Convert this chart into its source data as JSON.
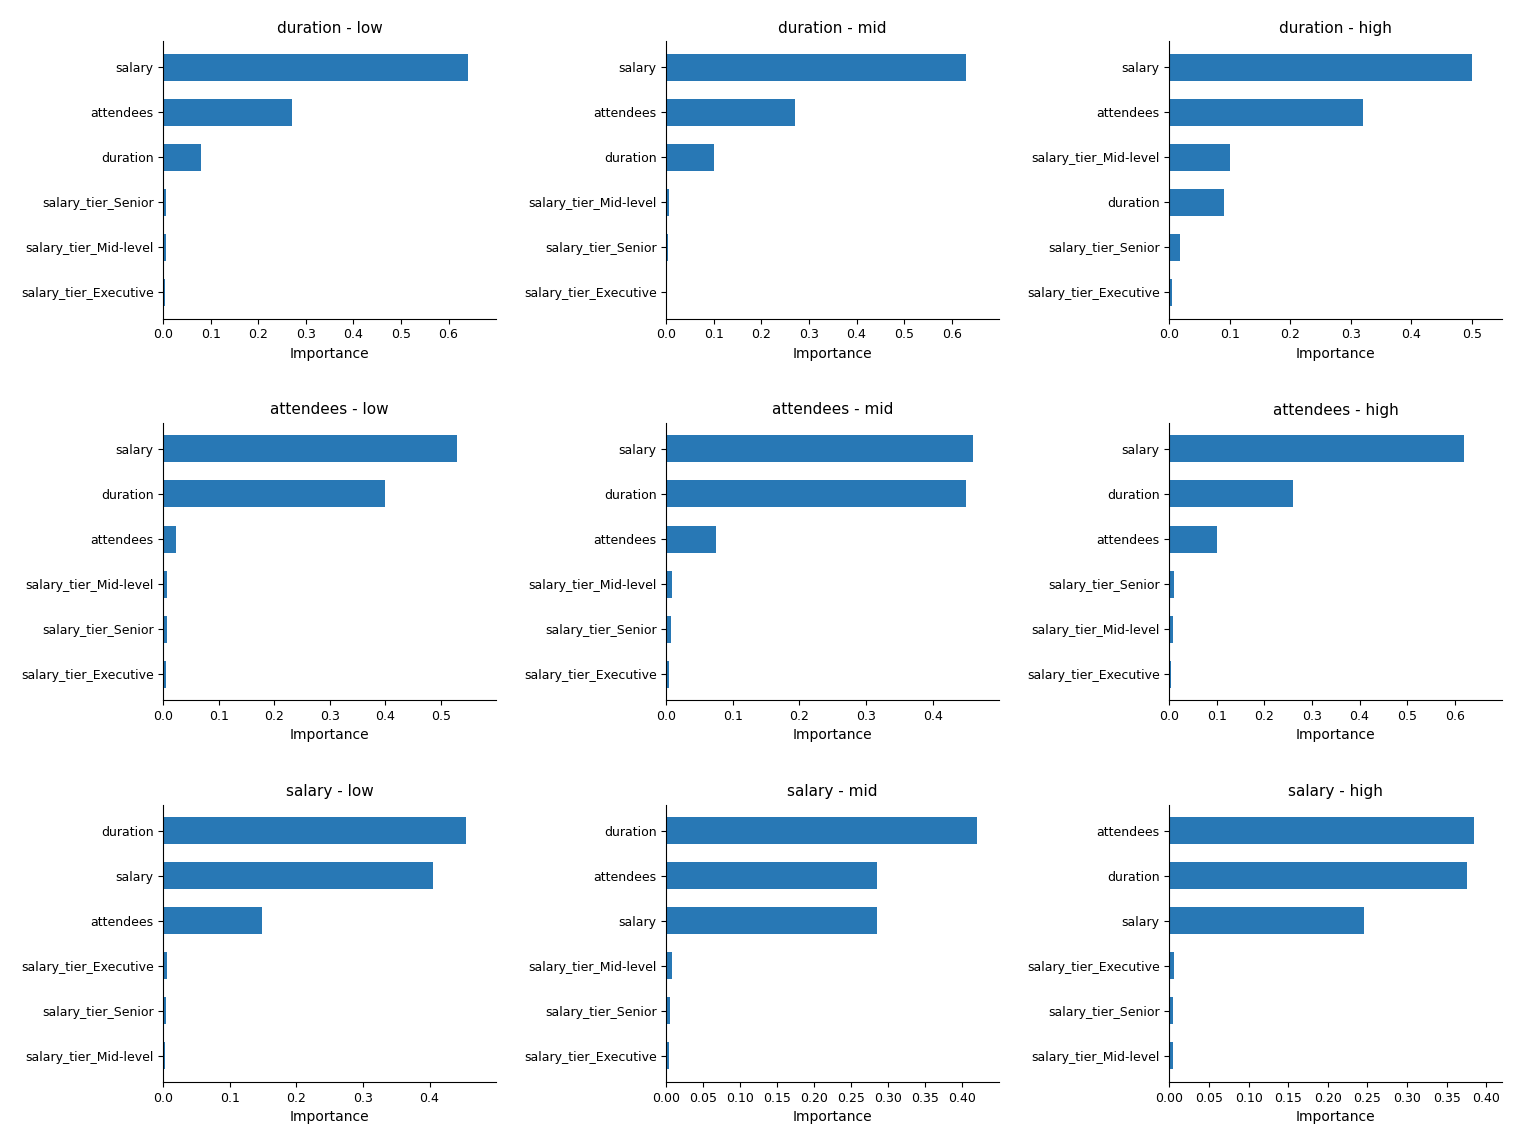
{
  "subplots": [
    {
      "title": "duration - low",
      "features": [
        "salary",
        "attendees",
        "duration",
        "salary_tier_Senior",
        "salary_tier_Mid-level",
        "salary_tier_Executive"
      ],
      "values": [
        0.64,
        0.27,
        0.08,
        0.006,
        0.005,
        0.003
      ],
      "xlim": [
        0.0,
        0.7
      ],
      "xticks": [
        0.0,
        0.1,
        0.2,
        0.3,
        0.4,
        0.5,
        0.6
      ]
    },
    {
      "title": "duration - mid",
      "features": [
        "salary",
        "attendees",
        "duration",
        "salary_tier_Mid-level",
        "salary_tier_Senior",
        "salary_tier_Executive"
      ],
      "values": [
        0.63,
        0.27,
        0.1,
        0.006,
        0.004,
        0.002
      ],
      "xlim": [
        0.0,
        0.7
      ],
      "xticks": [
        0.0,
        0.1,
        0.2,
        0.3,
        0.4,
        0.5,
        0.6
      ]
    },
    {
      "title": "duration - high",
      "features": [
        "salary",
        "attendees",
        "salary_tier_Mid-level",
        "duration",
        "salary_tier_Senior",
        "salary_tier_Executive"
      ],
      "values": [
        0.5,
        0.32,
        0.1,
        0.09,
        0.018,
        0.004
      ],
      "xlim": [
        0.0,
        0.55
      ],
      "xticks": [
        0.0,
        0.1,
        0.2,
        0.3,
        0.4,
        0.5
      ]
    },
    {
      "title": "attendees - low",
      "features": [
        "salary",
        "duration",
        "attendees",
        "salary_tier_Mid-level",
        "salary_tier_Senior",
        "salary_tier_Executive"
      ],
      "values": [
        0.53,
        0.4,
        0.022,
        0.007,
        0.006,
        0.004
      ],
      "xlim": [
        0.0,
        0.6
      ],
      "xticks": [
        0.0,
        0.1,
        0.2,
        0.3,
        0.4,
        0.5
      ]
    },
    {
      "title": "attendees - mid",
      "features": [
        "salary",
        "duration",
        "attendees",
        "salary_tier_Mid-level",
        "salary_tier_Senior",
        "salary_tier_Executive"
      ],
      "values": [
        0.46,
        0.45,
        0.075,
        0.008,
        0.007,
        0.004
      ],
      "xlim": [
        0.0,
        0.5
      ],
      "xticks": [
        0.0,
        0.1,
        0.2,
        0.3,
        0.4
      ]
    },
    {
      "title": "attendees - high",
      "features": [
        "salary",
        "duration",
        "attendees",
        "salary_tier_Senior",
        "salary_tier_Mid-level",
        "salary_tier_Executive"
      ],
      "values": [
        0.62,
        0.26,
        0.1,
        0.009,
        0.007,
        0.003
      ],
      "xlim": [
        0.0,
        0.7
      ],
      "xticks": [
        0.0,
        0.1,
        0.2,
        0.3,
        0.4,
        0.5,
        0.6
      ]
    },
    {
      "title": "salary - low",
      "features": [
        "duration",
        "salary",
        "attendees",
        "salary_tier_Executive",
        "salary_tier_Senior",
        "salary_tier_Mid-level"
      ],
      "values": [
        0.455,
        0.405,
        0.148,
        0.005,
        0.004,
        0.003
      ],
      "xlim": [
        0.0,
        0.5
      ],
      "xticks": [
        0.0,
        0.1,
        0.2,
        0.3,
        0.4
      ]
    },
    {
      "title": "salary - mid",
      "features": [
        "duration",
        "attendees",
        "salary",
        "salary_tier_Mid-level",
        "salary_tier_Senior",
        "salary_tier_Executive"
      ],
      "values": [
        0.42,
        0.285,
        0.285,
        0.008,
        0.005,
        0.004
      ],
      "xlim": [
        0.0,
        0.45
      ],
      "xticks": [
        0.0,
        0.05,
        0.1,
        0.15,
        0.2,
        0.25,
        0.3,
        0.35,
        0.4
      ]
    },
    {
      "title": "salary - high",
      "features": [
        "attendees",
        "duration",
        "salary",
        "salary_tier_Executive",
        "salary_tier_Senior",
        "salary_tier_Mid-level"
      ],
      "values": [
        0.385,
        0.375,
        0.245,
        0.006,
        0.005,
        0.004
      ],
      "xlim": [
        0.0,
        0.42
      ],
      "xticks": [
        0.0,
        0.05,
        0.1,
        0.15,
        0.2,
        0.25,
        0.3,
        0.35,
        0.4
      ]
    }
  ],
  "bar_color": "#2878b5",
  "xlabel": "Importance",
  "figsize": [
    15.23,
    11.45
  ],
  "dpi": 100
}
